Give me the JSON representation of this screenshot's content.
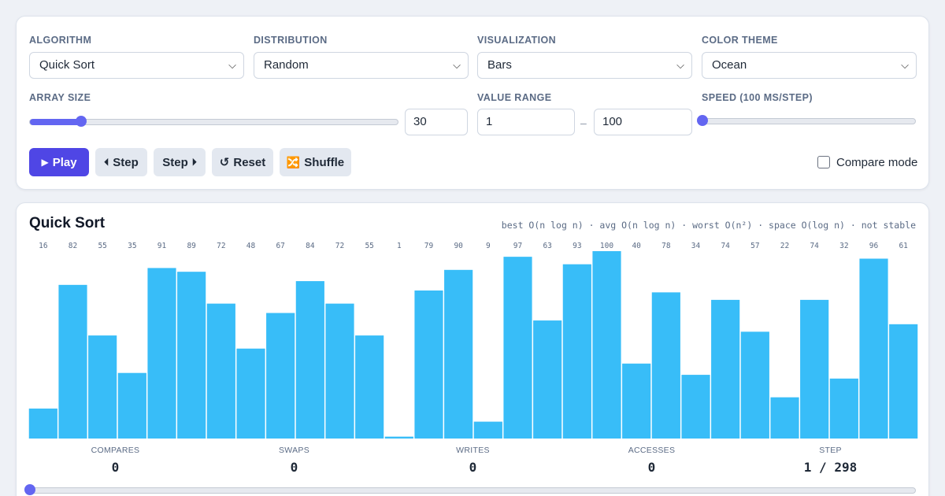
{
  "controls": {
    "algorithm": {
      "label": "ALGORITHM",
      "value": "Quick Sort"
    },
    "distribution": {
      "label": "DISTRIBUTION",
      "value": "Random"
    },
    "visualization": {
      "label": "VISUALIZATION",
      "value": "Bars"
    },
    "color_theme": {
      "label": "COLOR THEME",
      "value": "Ocean"
    },
    "array_size": {
      "label": "ARRAY SIZE",
      "value": "30",
      "slider_fraction": 0.14
    },
    "value_range": {
      "label": "VALUE RANGE",
      "min": "1",
      "separator": "–",
      "max": "100"
    },
    "speed": {
      "label": "SPEED (100 MS/STEP)",
      "slider_fraction": 0.0
    },
    "buttons": {
      "play": {
        "icon": "play-icon",
        "glyph": "▶",
        "label": "Play"
      },
      "step_back": {
        "icon": "caret-left-icon",
        "glyph": "⏴",
        "label": "Step"
      },
      "step_forward": {
        "icon": "caret-right-icon",
        "glyph": "⏵",
        "label": "Step"
      },
      "reset": {
        "icon": "reset-icon",
        "glyph": "↺",
        "label": "Reset"
      },
      "shuffle": {
        "icon": "shuffle-icon",
        "glyph": "🔀",
        "label": "Shuffle"
      }
    },
    "compare_mode": {
      "label": "Compare mode",
      "checked": false
    }
  },
  "visualization": {
    "title": "Quick Sort",
    "complexity": "best O(n log n) · avg O(n log n) · worst O(n²) · space O(log n) · not stable",
    "bar_color": "#38bdf8",
    "values": [
      16,
      82,
      55,
      35,
      91,
      89,
      72,
      48,
      67,
      84,
      72,
      55,
      1,
      79,
      90,
      9,
      97,
      63,
      93,
      100,
      40,
      78,
      34,
      74,
      57,
      22,
      74,
      32,
      96,
      61
    ],
    "max_value": 100
  },
  "stats": {
    "compares": {
      "label": "COMPARES",
      "value": "0"
    },
    "swaps": {
      "label": "SWAPS",
      "value": "0"
    },
    "writes": {
      "label": "WRITES",
      "value": "0"
    },
    "accesses": {
      "label": "ACCESSES",
      "value": "0"
    },
    "step": {
      "label": "STEP",
      "value": "1 / 298"
    }
  },
  "progress": {
    "fraction": 0.0
  },
  "colors": {
    "accent": "#4f46e5",
    "slider": "#6366f1",
    "bar": "#38bdf8"
  }
}
